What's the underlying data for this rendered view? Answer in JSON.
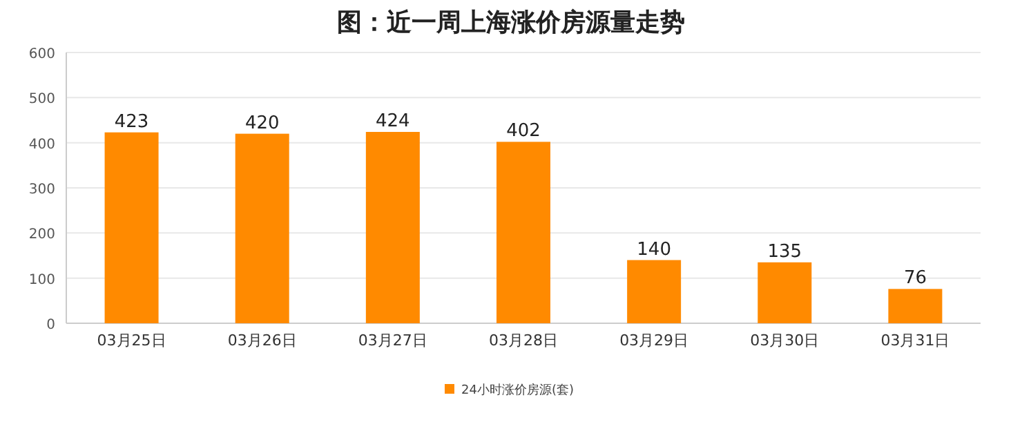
{
  "chart_data": {
    "type": "bar",
    "title": "图：近一周上海涨价房源量走势",
    "categories": [
      "03月25日",
      "03月26日",
      "03月27日",
      "03月28日",
      "03月29日",
      "03月30日",
      "03月31日"
    ],
    "series": [
      {
        "name": "24小时涨价房源(套)",
        "color": "#ff8a00",
        "values": [
          423,
          420,
          424,
          402,
          140,
          135,
          76
        ]
      }
    ],
    "ylim": [
      0,
      600
    ],
    "yticks": [
      0,
      100,
      200,
      300,
      400,
      500,
      600
    ],
    "grid": "y",
    "data_labels": true,
    "legend": "bottom"
  }
}
